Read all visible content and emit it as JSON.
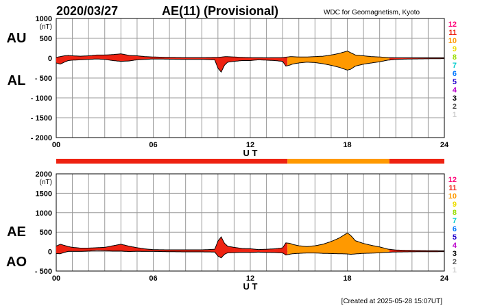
{
  "header": {
    "date": "2020/03/27",
    "title": "AE(11) (Provisional)",
    "source": "WDC for Geomagnetism, Kyoto"
  },
  "footer": {
    "created": "[Created at 2025-05-28 15:07UT]"
  },
  "colors": {
    "grid": "#999999",
    "outline": "#000000",
    "levels": {
      "12": "#ff0077",
      "11": "#ee2211",
      "10": "#ff9900",
      "9": "#eedd00",
      "8": "#99dd00",
      "7": "#00cccc",
      "6": "#0077ff",
      "5": "#2200cc",
      "4": "#bb00cc",
      "3": "#000000",
      "2": "#555555",
      "1": "#cccccc"
    }
  },
  "chart_data": [
    {
      "id": "au-al",
      "type": "area",
      "series_labels": [
        "AU",
        "AL"
      ],
      "unit": "(nT)",
      "ylim": [
        -2000,
        1000
      ],
      "yticks": [
        1000,
        500,
        0,
        -500,
        -1000,
        -1500,
        -2000
      ],
      "ytick_labels": [
        "1000",
        "500",
        "0",
        "- 500",
        "- 1000",
        "- 1500",
        "- 2000"
      ],
      "xlim": [
        0,
        24
      ],
      "xticks": [
        0,
        6,
        12,
        18,
        24
      ],
      "xtick_labels": [
        "00",
        "06",
        "12",
        "18",
        "24"
      ],
      "xlabel": "U T",
      "grid": true,
      "level_legend": [
        "12",
        "11",
        "10",
        "9",
        "8",
        "7",
        "6",
        "5",
        "4",
        "3",
        "2",
        "1"
      ],
      "au": [
        [
          0,
          20
        ],
        [
          0.25,
          40
        ],
        [
          0.5,
          60
        ],
        [
          0.75,
          70
        ],
        [
          1,
          60
        ],
        [
          1.5,
          50
        ],
        [
          2,
          60
        ],
        [
          2.5,
          80
        ],
        [
          3,
          80
        ],
        [
          3.5,
          90
        ],
        [
          4,
          110
        ],
        [
          4.5,
          70
        ],
        [
          5,
          60
        ],
        [
          5.5,
          40
        ],
        [
          6,
          30
        ],
        [
          7,
          20
        ],
        [
          8,
          15
        ],
        [
          9,
          15
        ],
        [
          10,
          20
        ],
        [
          10.5,
          40
        ],
        [
          11,
          30
        ],
        [
          11.5,
          20
        ],
        [
          12,
          15
        ],
        [
          13,
          10
        ],
        [
          14,
          15
        ],
        [
          14.5,
          40
        ],
        [
          15,
          30
        ],
        [
          15.5,
          30
        ],
        [
          16,
          40
        ],
        [
          16.5,
          50
        ],
        [
          17,
          80
        ],
        [
          17.5,
          120
        ],
        [
          18,
          180
        ],
        [
          18.5,
          80
        ],
        [
          19,
          60
        ],
        [
          19.5,
          40
        ],
        [
          20,
          30
        ],
        [
          20.5,
          15
        ],
        [
          21,
          10
        ],
        [
          22,
          10
        ],
        [
          23,
          10
        ],
        [
          24,
          10
        ]
      ],
      "al": [
        [
          0,
          -120
        ],
        [
          0.25,
          -150
        ],
        [
          0.5,
          -100
        ],
        [
          0.75,
          -60
        ],
        [
          1,
          -50
        ],
        [
          1.5,
          -40
        ],
        [
          2,
          -30
        ],
        [
          2.5,
          -20
        ],
        [
          3,
          -30
        ],
        [
          3.5,
          -60
        ],
        [
          4,
          -80
        ],
        [
          4.5,
          -70
        ],
        [
          5,
          -40
        ],
        [
          5.5,
          -30
        ],
        [
          6,
          -20
        ],
        [
          7,
          -25
        ],
        [
          8,
          -30
        ],
        [
          9,
          -30
        ],
        [
          9.8,
          -40
        ],
        [
          10,
          -250
        ],
        [
          10.2,
          -350
        ],
        [
          10.4,
          -180
        ],
        [
          10.6,
          -100
        ],
        [
          11,
          -80
        ],
        [
          11.5,
          -60
        ],
        [
          12,
          -60
        ],
        [
          12.5,
          -40
        ],
        [
          13,
          -50
        ],
        [
          13.5,
          -60
        ],
        [
          14,
          -80
        ],
        [
          14.2,
          -200
        ],
        [
          14.4,
          -180
        ],
        [
          14.6,
          -150
        ],
        [
          15,
          -120
        ],
        [
          15.5,
          -100
        ],
        [
          16,
          -110
        ],
        [
          16.5,
          -140
        ],
        [
          17,
          -180
        ],
        [
          17.5,
          -230
        ],
        [
          18,
          -300
        ],
        [
          18.2,
          -280
        ],
        [
          18.5,
          -200
        ],
        [
          19,
          -150
        ],
        [
          19.5,
          -120
        ],
        [
          20,
          -90
        ],
        [
          20.5,
          -50
        ],
        [
          21,
          -30
        ],
        [
          22,
          -20
        ],
        [
          23,
          -15
        ],
        [
          24,
          -10
        ]
      ]
    },
    {
      "id": "ae-ao",
      "type": "area",
      "series_labels": [
        "AE",
        "AO"
      ],
      "unit": "(nT)",
      "ylim": [
        -500,
        2000
      ],
      "yticks": [
        2000,
        1500,
        1000,
        500,
        0,
        -500
      ],
      "ytick_labels": [
        "2000",
        "1500",
        "1000",
        "500",
        "0",
        "- 500"
      ],
      "xlim": [
        0,
        24
      ],
      "xticks": [
        0,
        6,
        12,
        18,
        24
      ],
      "xtick_labels": [
        "00",
        "06",
        "12",
        "18",
        "24"
      ],
      "xlabel": "U T",
      "grid": true,
      "level_legend": [
        "12",
        "11",
        "10",
        "9",
        "8",
        "7",
        "6",
        "5",
        "4",
        "3",
        "2",
        "1"
      ],
      "activity_bar": [
        {
          "from": 0,
          "to": 14.3,
          "level": "11"
        },
        {
          "from": 14.3,
          "to": 20.6,
          "level": "10"
        },
        {
          "from": 20.6,
          "to": 24,
          "level": "11"
        }
      ],
      "segments": [
        {
          "from": 0,
          "to": 14.3,
          "level": "11"
        },
        {
          "from": 14.3,
          "to": 20.6,
          "level": "10"
        },
        {
          "from": 20.6,
          "to": 24,
          "level": "11"
        }
      ]
    }
  ]
}
